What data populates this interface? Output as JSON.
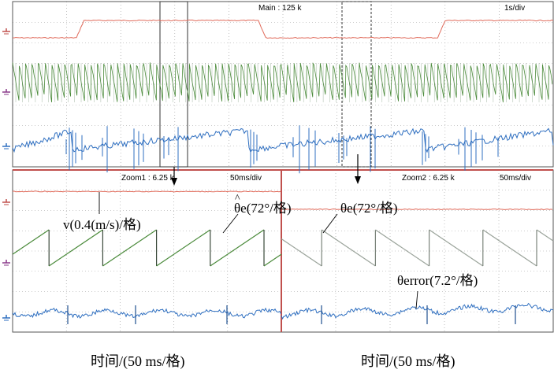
{
  "header": {
    "main_label": "Main : 125 k",
    "main_timebase": "1s/div",
    "zoom1_label": "Zoom1 : 6.25 k",
    "zoom1_timebase": "50ms/div",
    "zoom2_label": "Zoom2 : 6.25 k",
    "zoom2_timebase": "50ms/div"
  },
  "annotations": {
    "speed_label": "v(0.4(m/s)/格)",
    "theta_hat_label": "θe(72°/格)",
    "theta_label": "θe(72°/格)",
    "theta_error_label": "θerror(7.2°/格)",
    "xlabel_left": "时间/(50 ms/格)",
    "xlabel_right": "时间/(50 ms/格)"
  },
  "colors": {
    "speed": "#e06a5a",
    "theta_hat": "#4a8a3a",
    "theta": "#9aa39a",
    "error": "#2f6fc0",
    "grid": "#9a9a9a",
    "divider": "#c0504d"
  },
  "chart_data": [
    {
      "type": "line",
      "panel": "main",
      "title": "Main : 125 k",
      "timebase": "1s/div",
      "series": [
        {
          "name": "v",
          "points": [
            [
              0,
              0.0
            ],
            [
              2.6,
              0.0
            ],
            [
              2.9,
              0.75
            ],
            [
              10.0,
              0.75
            ],
            [
              10.3,
              0.0
            ],
            [
              17.3,
              0.0
            ],
            [
              17.6,
              0.75
            ],
            [
              22.0,
              0.75
            ]
          ]
        },
        {
          "name": "θe",
          "period_s": 0.25
        },
        {
          "name": "θerror",
          "spike_times_s": [
            2.6,
            10.3,
            17.5
          ]
        }
      ]
    },
    {
      "type": "line",
      "panel": "zoom1",
      "title": "Zoom1 : 6.25 k",
      "timebase": "50ms/div",
      "series": [
        {
          "name": "v",
          "value": 0.77
        },
        {
          "name": "θ̂e",
          "shape": "sawtooth-rising",
          "period_ms": 63.6
        },
        {
          "name": "θerror",
          "shape": "ripple"
        }
      ]
    },
    {
      "type": "line",
      "panel": "zoom2",
      "title": "Zoom2 : 6.25 k",
      "timebase": "50ms/div",
      "series": [
        {
          "name": "v",
          "value": 0.0
        },
        {
          "name": "θe",
          "shape": "sawtooth-falling",
          "period_ms": 63.6
        },
        {
          "name": "θerror",
          "shape": "ripple"
        }
      ]
    }
  ]
}
